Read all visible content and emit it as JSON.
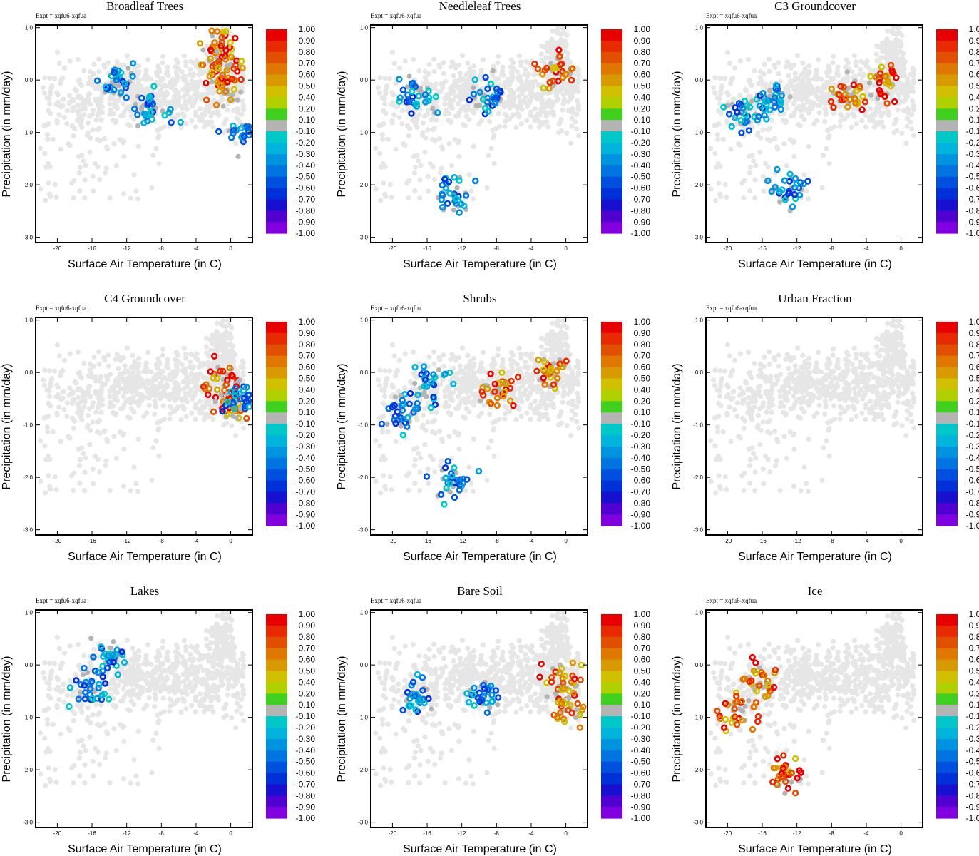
{
  "figure": {
    "expt_label": "Expt = xqfu6-xqfua",
    "xlabel": "Surface Air Temperature (in C)",
    "ylabel": "Precipitation (in mm/day)",
    "x_ticks": [
      "-20",
      "-16",
      "-12",
      "-8",
      "-4",
      "0"
    ],
    "y_ticks": [
      "1.0",
      "0.0",
      "-1.0",
      "-2.0",
      "-3.0"
    ],
    "colorbar_labels": [
      "1.00",
      "0.90",
      "0.80",
      "0.70",
      "0.60",
      "0.50",
      "0.40",
      "0.20",
      "0.10",
      "-0.10",
      "-0.20",
      "-0.30",
      "-0.40",
      "-0.50",
      "-0.60",
      "-0.70",
      "-0.80",
      "-0.90",
      "-1.00"
    ],
    "colorbar_colors": [
      "#e80000",
      "#e82a00",
      "#e05000",
      "#e07800",
      "#d89a00",
      "#d0c000",
      "#b0d000",
      "#40d020",
      "#b4b4b4",
      "#00c8c8",
      "#00b4dc",
      "#0094e0",
      "#0074e0",
      "#0050e0",
      "#0030d8",
      "#1810d0",
      "#5000d0",
      "#8000e0"
    ]
  },
  "chart_data": [
    {
      "type": "scatter",
      "title": "Broadleaf Trees",
      "xlabel": "Surface Air Temperature (in C)",
      "ylabel": "Precipitation (in mm/day)",
      "xlim": [
        -22.5,
        2.5
      ],
      "ylim": [
        -3.1,
        1.05
      ],
      "color_scale": "fractional change (-1.00 to 1.00)",
      "positive_clusters": [
        [
          -1.2,
          0.6
        ],
        [
          -0.6,
          0.3
        ],
        [
          -0.8,
          -0.1
        ]
      ],
      "negative_clusters": [
        [
          -9,
          -0.5
        ],
        [
          -13,
          0.0
        ],
        [
          1.5,
          -1.0
        ]
      ]
    },
    {
      "type": "scatter",
      "title": "Needleleaf Trees",
      "xlabel": "Surface Air Temperature (in C)",
      "ylabel": "Precipitation (in mm/day)",
      "xlim": [
        -22.5,
        2.5
      ],
      "ylim": [
        -3.1,
        1.05
      ],
      "color_scale": "fractional change (-1.00 to 1.00)",
      "positive_clusters": [
        [
          -1.0,
          0.1
        ]
      ],
      "negative_clusters": [
        [
          -9,
          -0.3
        ],
        [
          -17,
          -0.3
        ],
        [
          -13,
          -2.2
        ]
      ]
    },
    {
      "type": "scatter",
      "title": "C3 Groundcover",
      "xlabel": "Surface Air Temperature (in C)",
      "ylabel": "Precipitation (in mm/day)",
      "xlim": [
        -22.5,
        2.5
      ],
      "ylim": [
        -3.1,
        1.05
      ],
      "color_scale": "fractional change (-1.00 to 1.00)",
      "positive_clusters": [
        [
          -6,
          -0.3
        ],
        [
          -2,
          -0.05
        ]
      ],
      "negative_clusters": [
        [
          -15,
          -0.4
        ],
        [
          -18,
          -0.6
        ],
        [
          -13,
          -2.1
        ]
      ]
    },
    {
      "type": "scatter",
      "title": "C4 Groundcover",
      "xlabel": "Surface Air Temperature (in C)",
      "ylabel": "Precipitation (in mm/day)",
      "xlim": [
        -22.5,
        2.5
      ],
      "ylim": [
        -3.1,
        1.05
      ],
      "color_scale": "fractional change (-1.00 to 1.00)",
      "positive_clusters": [
        [
          -0.8,
          -0.2
        ],
        [
          0.0,
          -0.6
        ]
      ],
      "negative_clusters": [
        [
          1.2,
          -0.5
        ]
      ]
    },
    {
      "type": "scatter",
      "title": "Shrubs",
      "xlabel": "Surface Air Temperature (in C)",
      "ylabel": "Precipitation (in mm/day)",
      "xlim": [
        -22.5,
        2.5
      ],
      "ylim": [
        -3.1,
        1.05
      ],
      "color_scale": "fractional change (-1.00 to 1.00)",
      "positive_clusters": [
        [
          -8,
          -0.3
        ],
        [
          -1.5,
          0.0
        ]
      ],
      "negative_clusters": [
        [
          -16,
          -0.2
        ],
        [
          -19,
          -0.8
        ],
        [
          -13,
          -2.1
        ]
      ]
    },
    {
      "type": "scatter",
      "title": "Urban Fraction",
      "xlabel": "Surface Air Temperature (in C)",
      "ylabel": "Precipitation (in mm/day)",
      "xlim": [
        -22.5,
        2.5
      ],
      "ylim": [
        -3.1,
        1.05
      ],
      "color_scale": "fractional change (-1.00 to 1.00)",
      "positive_clusters": [],
      "negative_clusters": []
    },
    {
      "type": "scatter",
      "title": "Lakes",
      "xlabel": "Surface Air Temperature (in C)",
      "ylabel": "Precipitation (in mm/day)",
      "xlim": [
        -22.5,
        2.5
      ],
      "ylim": [
        -3.1,
        1.05
      ],
      "color_scale": "fractional change (-1.00 to 1.00)",
      "positive_clusters": [],
      "negative_clusters": [
        [
          -16.5,
          -0.4
        ],
        [
          -14,
          0.15
        ]
      ]
    },
    {
      "type": "scatter",
      "title": "Bare Soil",
      "xlabel": "Surface Air Temperature (in C)",
      "ylabel": "Precipitation (in mm/day)",
      "xlim": [
        -22.5,
        2.5
      ],
      "ylim": [
        -3.1,
        1.05
      ],
      "color_scale": "fractional change (-1.00 to 1.00)",
      "positive_clusters": [
        [
          -0.5,
          -0.3
        ],
        [
          1.0,
          -0.8
        ]
      ],
      "negative_clusters": [
        [
          -17,
          -0.6
        ],
        [
          -9.5,
          -0.6
        ]
      ]
    },
    {
      "type": "scatter",
      "title": "Ice",
      "xlabel": "Surface Air Temperature (in C)",
      "ylabel": "Precipitation (in mm/day)",
      "xlim": [
        -22.5,
        2.5
      ],
      "ylim": [
        -3.1,
        1.05
      ],
      "color_scale": "fractional change (-1.00 to 1.00)",
      "positive_clusters": [
        [
          -16,
          -0.3
        ],
        [
          -19,
          -0.9
        ],
        [
          -13,
          -2.1
        ]
      ],
      "negative_clusters": []
    }
  ]
}
